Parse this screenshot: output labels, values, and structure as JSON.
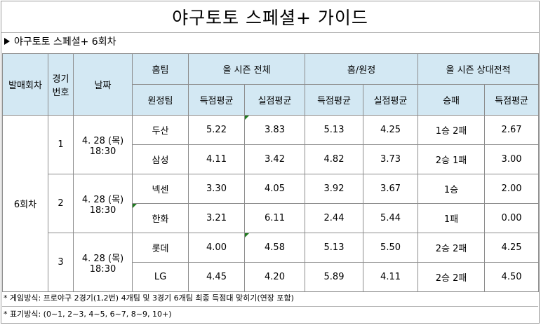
{
  "title": "야구토토 스페셜+ 가이드",
  "subtitle": "야구토토 스페셜+ 6회차",
  "headers": {
    "round": "발매회차",
    "game": "경기번호",
    "date": "날짜",
    "home_team": "홈팀",
    "away_team": "원정팀",
    "season_total": "올 시즌 전체",
    "home_away": "홈/원정",
    "head_to_head": "올 시즌 상대전적",
    "avg_scored": "득점평균",
    "avg_allowed": "실점평균",
    "win_loss": "승패"
  },
  "round_value": "6회차",
  "games": [
    {
      "number": "1",
      "date": "4. 28 (목)",
      "time": "18:30",
      "teams": [
        {
          "name": "두산",
          "season_scored": "5.22",
          "season_allowed": "3.83",
          "ha_scored": "5.13",
          "ha_allowed": "4.25",
          "record": "1승 2패",
          "h2h_scored": "2.67"
        },
        {
          "name": "삼성",
          "season_scored": "4.11",
          "season_allowed": "3.42",
          "ha_scored": "4.82",
          "ha_allowed": "3.73",
          "record": "2승 1패",
          "h2h_scored": "3.00"
        }
      ]
    },
    {
      "number": "2",
      "date": "4. 28 (목)",
      "time": "18:30",
      "teams": [
        {
          "name": "넥센",
          "season_scored": "3.30",
          "season_allowed": "4.05",
          "ha_scored": "3.92",
          "ha_allowed": "3.67",
          "record": "1승",
          "h2h_scored": "2.00"
        },
        {
          "name": "한화",
          "season_scored": "3.21",
          "season_allowed": "6.11",
          "ha_scored": "2.44",
          "ha_allowed": "5.44",
          "record": "1패",
          "h2h_scored": "0.00"
        }
      ]
    },
    {
      "number": "3",
      "date": "4. 28 (목)",
      "time": "18:30",
      "teams": [
        {
          "name": "롯데",
          "season_scored": "4.00",
          "season_allowed": "4.58",
          "ha_scored": "5.13",
          "ha_allowed": "5.50",
          "record": "2승 2패",
          "h2h_scored": "4.25"
        },
        {
          "name": "LG",
          "season_scored": "4.45",
          "season_allowed": "4.20",
          "ha_scored": "5.89",
          "ha_allowed": "4.11",
          "record": "2승 2패",
          "h2h_scored": "4.50"
        }
      ]
    }
  ],
  "notes": [
    "* 게임방식: 프로야구 2경기(1,2번) 4개팀 및 3경기 6개팀 최종 득점대 맞히기(연장 포함)",
    "* 표기방식: (0~1, 2~3, 4~5, 6~7, 8~9, 10+)"
  ],
  "colors": {
    "header_bg": "#d3e8f3",
    "marker": "#1f7a1f",
    "border": "#8c8c8c"
  }
}
